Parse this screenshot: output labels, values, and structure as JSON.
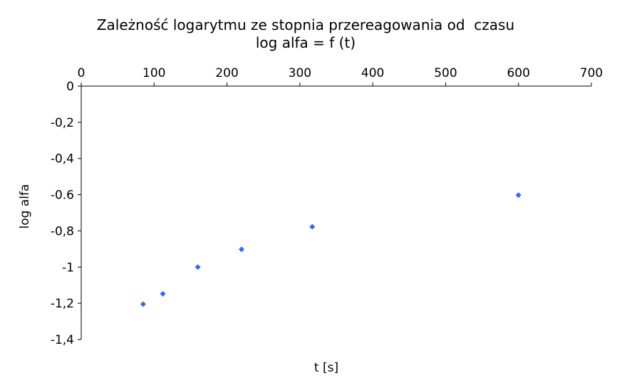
{
  "chart_data": {
    "type": "scatter",
    "title": "Zależność logarytmu ze stopnia przereagowania od  czasu",
    "subtitle": "log alfa = f (t)",
    "xlabel": "t [s]",
    "ylabel": "log alfa",
    "xlim": [
      0,
      700
    ],
    "ylim": [
      -1.4,
      0
    ],
    "x_axis_position": "top",
    "x_ticks": [
      0,
      100,
      200,
      300,
      400,
      500,
      600,
      700
    ],
    "x_tick_labels": [
      "0",
      "100",
      "200",
      "300",
      "400",
      "500",
      "600",
      "700"
    ],
    "y_ticks": [
      0,
      -0.2,
      -0.4,
      -0.6,
      -0.8,
      -1,
      -1.2,
      -1.4
    ],
    "y_tick_labels": [
      "0",
      "-0,2",
      "-0,4",
      "-0.6",
      "-0,8",
      "-1",
      "-1,2",
      "-1,4"
    ],
    "grid": false,
    "legend": "none",
    "series": [
      {
        "color": "#3366ff",
        "marker": "diamond",
        "x": [
          85,
          112,
          160,
          220,
          317,
          600
        ],
        "y": [
          -1.205,
          -1.148,
          -1.0,
          -0.902,
          -0.777,
          -0.602
        ]
      }
    ]
  }
}
